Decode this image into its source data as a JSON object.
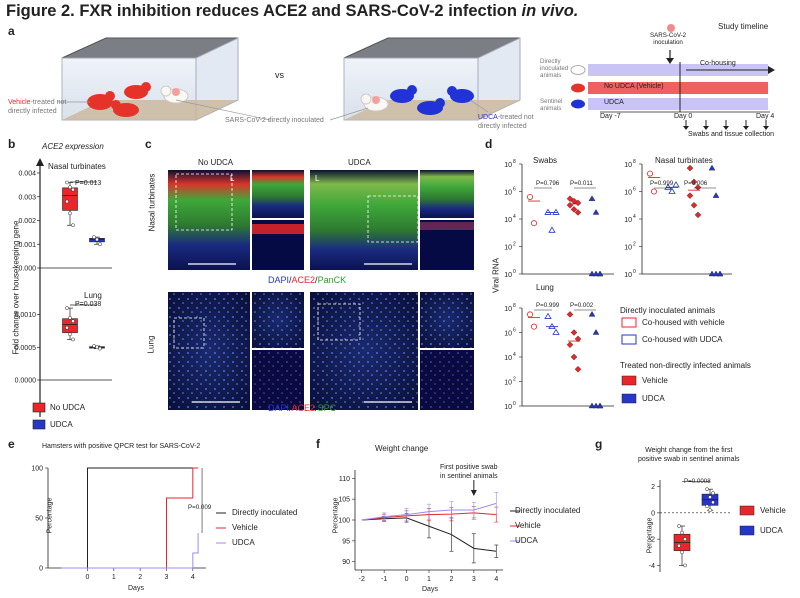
{
  "title": {
    "main": "Figure 2. FXR inhibition reduces ACE2 and SARS-CoV-2 infection",
    "italic": "in vivo."
  },
  "panel_labels": {
    "a": "a",
    "b": "b",
    "c": "c",
    "d": "d",
    "e": "e",
    "f": "f",
    "g": "g"
  },
  "panel_a": {
    "vs": "vs",
    "vehicle_note_1": "Vehicle",
    "vehicle_note_2": "-treated not",
    "vehicle_note_3": "directly infected",
    "inoculated_note": "SARS-CoV-2 directly inoculated",
    "udca_note_1": "UDCA",
    "udca_note_2": "-treated not",
    "udca_note_3": "directly infected",
    "timeline_title": "Study timeline",
    "inoculation": "SARS-CoV-2\ninoculation",
    "cohousing": "Co-housing",
    "direct_label": "Directly\ninoculated\nanimals",
    "sentinel_label": "Sentinel\nanimals",
    "bar_vehicle": "No UDCA (Vehicle)",
    "bar_udca": "UDCA",
    "day_m7": "Day -7",
    "day_0": "Day 0",
    "day_4": "Day 4",
    "swabs": "Swabs and tissue collection"
  },
  "panel_b": {
    "title": "ACE2 expression",
    "nasal": "Nasal turbinates",
    "lung": "Lung",
    "ylabel": "Fold change over housekeeping gene",
    "p_nasal": "P=0.013",
    "p_lung": "P=0.038",
    "legend": [
      "No UDCA",
      "UDCA"
    ],
    "nasal_ticks": [
      "0.004",
      "0.003",
      "0.002",
      "0.001",
      "0.000"
    ],
    "lung_ticks": [
      "0.0010",
      "0.0005",
      "0.0000"
    ]
  },
  "panel_c": {
    "no_udca": "No UDCA",
    "udca": "UDCA",
    "row1": "Nasal turbinates",
    "row2": "Lung",
    "L": "L",
    "stain1": [
      "DAPI",
      "/",
      "ACE2",
      "/",
      "PanCK"
    ],
    "stain2": [
      "DAPI",
      "/",
      "ACE2",
      "/",
      "SPC"
    ]
  },
  "panel_d": {
    "ylabel": "Viral RNA",
    "swabs": "Swabs",
    "nasal": "Nasal turbinates",
    "lung": "Lung",
    "p_swab_1": "P=0.796",
    "p_swab_2": "P=0.011",
    "p_nasal_1": "P=0.999",
    "p_nasal_2": "P=0.006",
    "p_lung_1": "P=0.999",
    "p_lung_2": "P=0.002",
    "ticks": [
      "10",
      "10",
      "10",
      "10",
      "10"
    ],
    "exps": [
      "8",
      "6",
      "4",
      "2",
      "0"
    ],
    "legend_head1": "Directly inoculated animals",
    "legend_item1": "Co-housed with vehicle",
    "legend_item2": "Co-housed with UDCA",
    "legend_head2": "Treated non-directly infected animals",
    "legend_item3": "Vehicle",
    "legend_item4": "UDCA"
  },
  "panel_e": {
    "title": "Hamsters with positive QPCR test for SARS-CoV-2",
    "ylabel": "Percentage",
    "xlabel": "Days",
    "p": "P=0.009",
    "legend": [
      "Directly inoculated",
      "Vehicle",
      "UDCA"
    ],
    "yticks": [
      "100",
      "50",
      "0"
    ],
    "xticks": [
      "0",
      "1",
      "2",
      "3",
      "4"
    ]
  },
  "panel_f": {
    "title": "Weight change",
    "annot": "First positive swab\nin sentinel animals",
    "ylabel": "Percentage",
    "xlabel": "Days",
    "legend": [
      "Directly inoculated",
      "Vehicle",
      "UDCA"
    ],
    "yticks": [
      "110",
      "105",
      "100",
      "95",
      "90"
    ],
    "xticks": [
      "-2",
      "-1",
      "0",
      "1",
      "2",
      "3",
      "4"
    ]
  },
  "panel_g": {
    "title": "Weight change from the first\npositive swab in sentinel animals",
    "ylabel": "Percentage",
    "p": "P=0.0008",
    "legend": [
      "Vehicle",
      "UDCA"
    ],
    "yticks": [
      "2",
      "0",
      "-2",
      "-4"
    ]
  },
  "colors": {
    "red": "#e8262b",
    "blue": "#2536c8",
    "purple": "#9b8cf0",
    "lavender": "#c9c4f5",
    "black": "#222222"
  },
  "chart_data": [
    {
      "type": "box",
      "panel": "b-nasal",
      "ylim": [
        0,
        0.004
      ],
      "series": [
        {
          "name": "No UDCA",
          "values": [
            0.0036,
            0.0034,
            0.0033,
            0.0028,
            0.0023,
            0.0018
          ]
        },
        {
          "name": "UDCA",
          "values": [
            0.0013,
            0.0012,
            0.001
          ]
        }
      ]
    },
    {
      "type": "box",
      "panel": "b-lung",
      "ylim": [
        0,
        0.0013
      ],
      "series": [
        {
          "name": "No UDCA",
          "values": [
            0.0011,
            0.00095,
            0.0009,
            0.0008,
            0.0007,
            0.00062
          ]
        },
        {
          "name": "UDCA",
          "values": [
            0.00052,
            0.0005,
            0.00048
          ]
        }
      ]
    },
    {
      "type": "scatter",
      "panel": "d-swabs",
      "yscale": "log",
      "ylim": [
        1,
        100000000
      ],
      "series": [
        {
          "name": "Co-housed with vehicle",
          "values": [
            400000,
            5000
          ]
        },
        {
          "name": "Co-housed with UDCA",
          "values": [
            30000,
            1500,
            30000
          ]
        },
        {
          "name": "Vehicle",
          "values": [
            300000,
            200000,
            150000,
            100000,
            50000,
            30000
          ]
        },
        {
          "name": "UDCA",
          "values": [
            300000,
            30000,
            1,
            1,
            1,
            1
          ]
        }
      ]
    },
    {
      "type": "scatter",
      "panel": "d-nasal",
      "yscale": "log",
      "ylim": [
        1,
        100000000
      ],
      "series": [
        {
          "name": "Co-housed with vehicle",
          "values": [
            20000000,
            1000000
          ]
        },
        {
          "name": "Co-housed with UDCA",
          "values": [
            2000000,
            1000000,
            3000000
          ]
        },
        {
          "name": "Vehicle",
          "values": [
            50000000,
            5000000,
            2000000,
            500000,
            100000,
            20000
          ]
        },
        {
          "name": "UDCA",
          "values": [
            50000000,
            500000,
            1,
            1,
            1,
            1
          ]
        }
      ]
    },
    {
      "type": "scatter",
      "panel": "d-lung",
      "yscale": "log",
      "ylim": [
        1,
        100000000
      ],
      "series": [
        {
          "name": "Co-housed with vehicle",
          "values": [
            30000000,
            3000000
          ]
        },
        {
          "name": "Co-housed with UDCA",
          "values": [
            20000000,
            3000000,
            1000000
          ]
        },
        {
          "name": "Vehicle",
          "values": [
            30000000,
            1000000,
            300000,
            100000,
            10000,
            1000
          ]
        },
        {
          "name": "UDCA",
          "values": [
            30000000,
            1000000,
            1,
            1,
            1,
            1
          ]
        }
      ]
    },
    {
      "type": "line",
      "panel": "e",
      "x": [
        -1,
        0,
        1,
        2,
        3,
        4,
        4.2
      ],
      "ylim": [
        0,
        100
      ],
      "series": [
        {
          "name": "Directly inoculated",
          "values": [
            0,
            100,
            100,
            100,
            100,
            100,
            100
          ]
        },
        {
          "name": "Vehicle",
          "values": [
            0,
            0,
            0,
            0,
            70,
            100,
            100
          ]
        },
        {
          "name": "UDCA",
          "values": [
            0,
            0,
            0,
            0,
            0,
            15,
            35
          ]
        }
      ]
    },
    {
      "type": "line",
      "panel": "f",
      "x": [
        -2,
        -1,
        0,
        1,
        2,
        3,
        4
      ],
      "ylim": [
        88,
        112
      ],
      "series": [
        {
          "name": "Directly inoculated",
          "values": [
            100,
            100.3,
            100.5,
            98.5,
            96.5,
            93.2,
            92.5
          ]
        },
        {
          "name": "Vehicle",
          "values": [
            100,
            100.6,
            101,
            101.3,
            101.4,
            101.7,
            101.3
          ]
        },
        {
          "name": "UDCA",
          "values": [
            100,
            100.8,
            101.3,
            102,
            102.4,
            102.4,
            104
          ]
        }
      ]
    },
    {
      "type": "box",
      "panel": "g",
      "ylim": [
        -4.5,
        2.5
      ],
      "series": [
        {
          "name": "Vehicle",
          "values": [
            -1.0,
            -1.5,
            -2.0,
            -2.5,
            -3.0,
            -4.0
          ]
        },
        {
          "name": "UDCA",
          "values": [
            1.8,
            1.2,
            0.8,
            0.5,
            0.2,
            1.5
          ]
        }
      ]
    }
  ]
}
